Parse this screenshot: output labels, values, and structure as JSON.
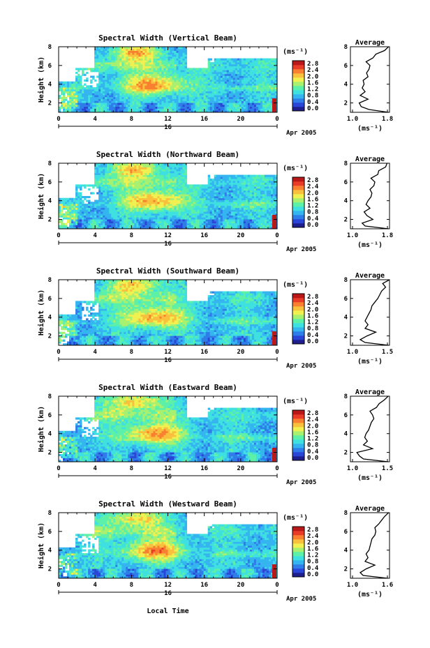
{
  "xlabel": "Local Time",
  "date_label": "Apr 2005",
  "day_label": "16",
  "unit_label": "(ms⁻¹)",
  "panel_ylabel": "Height (km)",
  "avg_title": "Average",
  "colorbar_ticks": [
    "2.8",
    "2.4",
    "2.0",
    "1.6",
    "1.2",
    "0.8",
    "0.4",
    "0.0"
  ],
  "colors": {
    "scale": [
      "#1e1e8c",
      "#2a46d6",
      "#2f7de8",
      "#35b5f0",
      "#3fe0e0",
      "#5cf0a8",
      "#a8f070",
      "#f0f050",
      "#f8c03c",
      "#f88030",
      "#e83c28",
      "#b81818"
    ]
  },
  "chart_data": [
    {
      "type": "heatmap",
      "title": "Spectral Width (Vertical Beam)",
      "xlabel": "",
      "ylabel": "Height (km)",
      "x_ticks": [
        "0",
        "4",
        "8",
        "12",
        "16",
        "20",
        "0"
      ],
      "xlim": [
        0,
        24
      ],
      "ylim": [
        1,
        8
      ],
      "y_ticks": [
        "2",
        "4",
        "6",
        "8"
      ],
      "colorbar": {
        "label": "(ms⁻¹)",
        "range": [
          0.0,
          2.8
        ]
      },
      "average_profile": {
        "title": "Average",
        "xlabel": "(ms⁻¹)",
        "x_ticks": [
          "1.0",
          "1.8"
        ],
        "xlim": [
          1.0,
          1.8
        ],
        "ylim": [
          1,
          8
        ],
        "heights": [
          1.0,
          1.3,
          1.6,
          2.0,
          2.4,
          2.8,
          3.2,
          3.6,
          4.0,
          4.4,
          4.8,
          5.2,
          5.6,
          6.0,
          6.4,
          6.8,
          7.2,
          7.6,
          8.0
        ],
        "values": [
          1.78,
          1.38,
          1.22,
          1.18,
          1.36,
          1.2,
          1.3,
          1.24,
          1.28,
          1.26,
          1.36,
          1.33,
          1.38,
          1.4,
          1.32,
          1.46,
          1.52,
          1.7,
          1.78
        ]
      }
    },
    {
      "type": "heatmap",
      "title": "Spectral Width (Northward Beam)",
      "xlabel": "",
      "ylabel": "Height (km)",
      "x_ticks": [
        "0",
        "4",
        "8",
        "12",
        "16",
        "20",
        "0"
      ],
      "xlim": [
        0,
        24
      ],
      "ylim": [
        1,
        8
      ],
      "y_ticks": [
        "2",
        "4",
        "6",
        "8"
      ],
      "colorbar": {
        "label": "(ms⁻¹)",
        "range": [
          0.0,
          2.8
        ]
      },
      "average_profile": {
        "title": "Average",
        "xlabel": "(ms⁻¹)",
        "x_ticks": [
          "1.0",
          "1.8"
        ],
        "xlim": [
          1.0,
          1.8
        ],
        "ylim": [
          1,
          8
        ],
        "heights": [
          1.0,
          1.3,
          1.6,
          2.0,
          2.4,
          2.8,
          3.2,
          3.6,
          4.0,
          4.4,
          4.8,
          5.2,
          5.6,
          6.0,
          6.4,
          6.8,
          7.2,
          7.6,
          8.0
        ],
        "values": [
          1.78,
          1.3,
          1.24,
          1.46,
          1.34,
          1.28,
          1.4,
          1.32,
          1.36,
          1.42,
          1.44,
          1.4,
          1.48,
          1.5,
          1.42,
          1.56,
          1.58,
          1.72,
          1.75
        ]
      }
    },
    {
      "type": "heatmap",
      "title": "Spectral Width (Southward Beam)",
      "xlabel": "",
      "ylabel": "Height (km)",
      "x_ticks": [
        "0",
        "4",
        "8",
        "12",
        "16",
        "20",
        "0"
      ],
      "xlim": [
        0,
        24
      ],
      "ylim": [
        1,
        8
      ],
      "y_ticks": [
        "2",
        "4",
        "6",
        "8"
      ],
      "colorbar": {
        "label": "(ms⁻¹)",
        "range": [
          0.0,
          2.8
        ]
      },
      "average_profile": {
        "title": "Average",
        "xlabel": "(ms⁻¹)",
        "x_ticks": [
          "1.0",
          "1.5"
        ],
        "xlim": [
          1.0,
          1.8
        ],
        "ylim": [
          1,
          8
        ],
        "heights": [
          1.0,
          1.3,
          1.6,
          2.0,
          2.4,
          2.8,
          3.2,
          3.6,
          4.0,
          4.4,
          4.8,
          5.2,
          5.6,
          6.0,
          6.4,
          6.8,
          7.2,
          7.6,
          8.0
        ],
        "values": [
          1.78,
          1.3,
          1.2,
          1.34,
          1.52,
          1.3,
          1.36,
          1.3,
          1.34,
          1.38,
          1.42,
          1.44,
          1.5,
          1.56,
          1.6,
          1.64,
          1.72,
          1.66,
          1.8
        ]
      }
    },
    {
      "type": "heatmap",
      "title": "Spectral Width (Eastward Beam)",
      "xlabel": "",
      "ylabel": "Height (km)",
      "x_ticks": [
        "0",
        "4",
        "8",
        "12",
        "16",
        "20",
        "0"
      ],
      "xlim": [
        0,
        24
      ],
      "ylim": [
        1,
        8
      ],
      "y_ticks": [
        "2",
        "4",
        "6",
        "8"
      ],
      "colorbar": {
        "label": "(ms⁻¹)",
        "range": [
          0.0,
          2.8
        ]
      },
      "average_profile": {
        "title": "Average",
        "xlabel": "(ms⁻¹)",
        "x_ticks": [
          "1.0",
          "1.5"
        ],
        "xlim": [
          1.0,
          1.6
        ],
        "ylim": [
          1,
          8
        ],
        "heights": [
          1.0,
          1.3,
          1.6,
          2.0,
          2.4,
          2.8,
          3.2,
          3.6,
          4.0,
          4.4,
          4.8,
          5.2,
          5.6,
          6.0,
          6.4,
          6.8,
          7.2,
          7.6,
          8.0
        ],
        "values": [
          1.58,
          1.2,
          1.14,
          1.1,
          1.34,
          1.2,
          1.26,
          1.22,
          1.24,
          1.28,
          1.3,
          1.32,
          1.36,
          1.34,
          1.3,
          1.4,
          1.44,
          1.52,
          1.58
        ]
      }
    },
    {
      "type": "heatmap",
      "title": "Spectral Width (Westward Beam)",
      "xlabel": "Local Time",
      "ylabel": "Height (km)",
      "x_ticks": [
        "0",
        "4",
        "8",
        "12",
        "16",
        "20",
        "0"
      ],
      "xlim": [
        0,
        24
      ],
      "ylim": [
        1,
        8
      ],
      "y_ticks": [
        "2",
        "4",
        "6",
        "8"
      ],
      "colorbar": {
        "label": "(ms⁻¹)",
        "range": [
          0.0,
          2.8
        ]
      },
      "average_profile": {
        "title": "Average",
        "xlabel": "(ms⁻¹)",
        "x_ticks": [
          "1.0",
          "1.6"
        ],
        "xlim": [
          1.0,
          1.8
        ],
        "ylim": [
          1,
          8
        ],
        "heights": [
          1.0,
          1.3,
          1.6,
          2.0,
          2.4,
          2.8,
          3.2,
          3.6,
          4.0,
          4.4,
          4.8,
          5.2,
          5.6,
          6.0,
          6.4,
          6.8,
          7.2,
          7.6,
          8.0
        ],
        "values": [
          1.76,
          1.26,
          1.2,
          1.32,
          1.5,
          1.3,
          1.36,
          1.32,
          1.38,
          1.4,
          1.42,
          1.44,
          1.5,
          1.52,
          1.5,
          1.58,
          1.64,
          1.7,
          1.78
        ]
      }
    }
  ]
}
